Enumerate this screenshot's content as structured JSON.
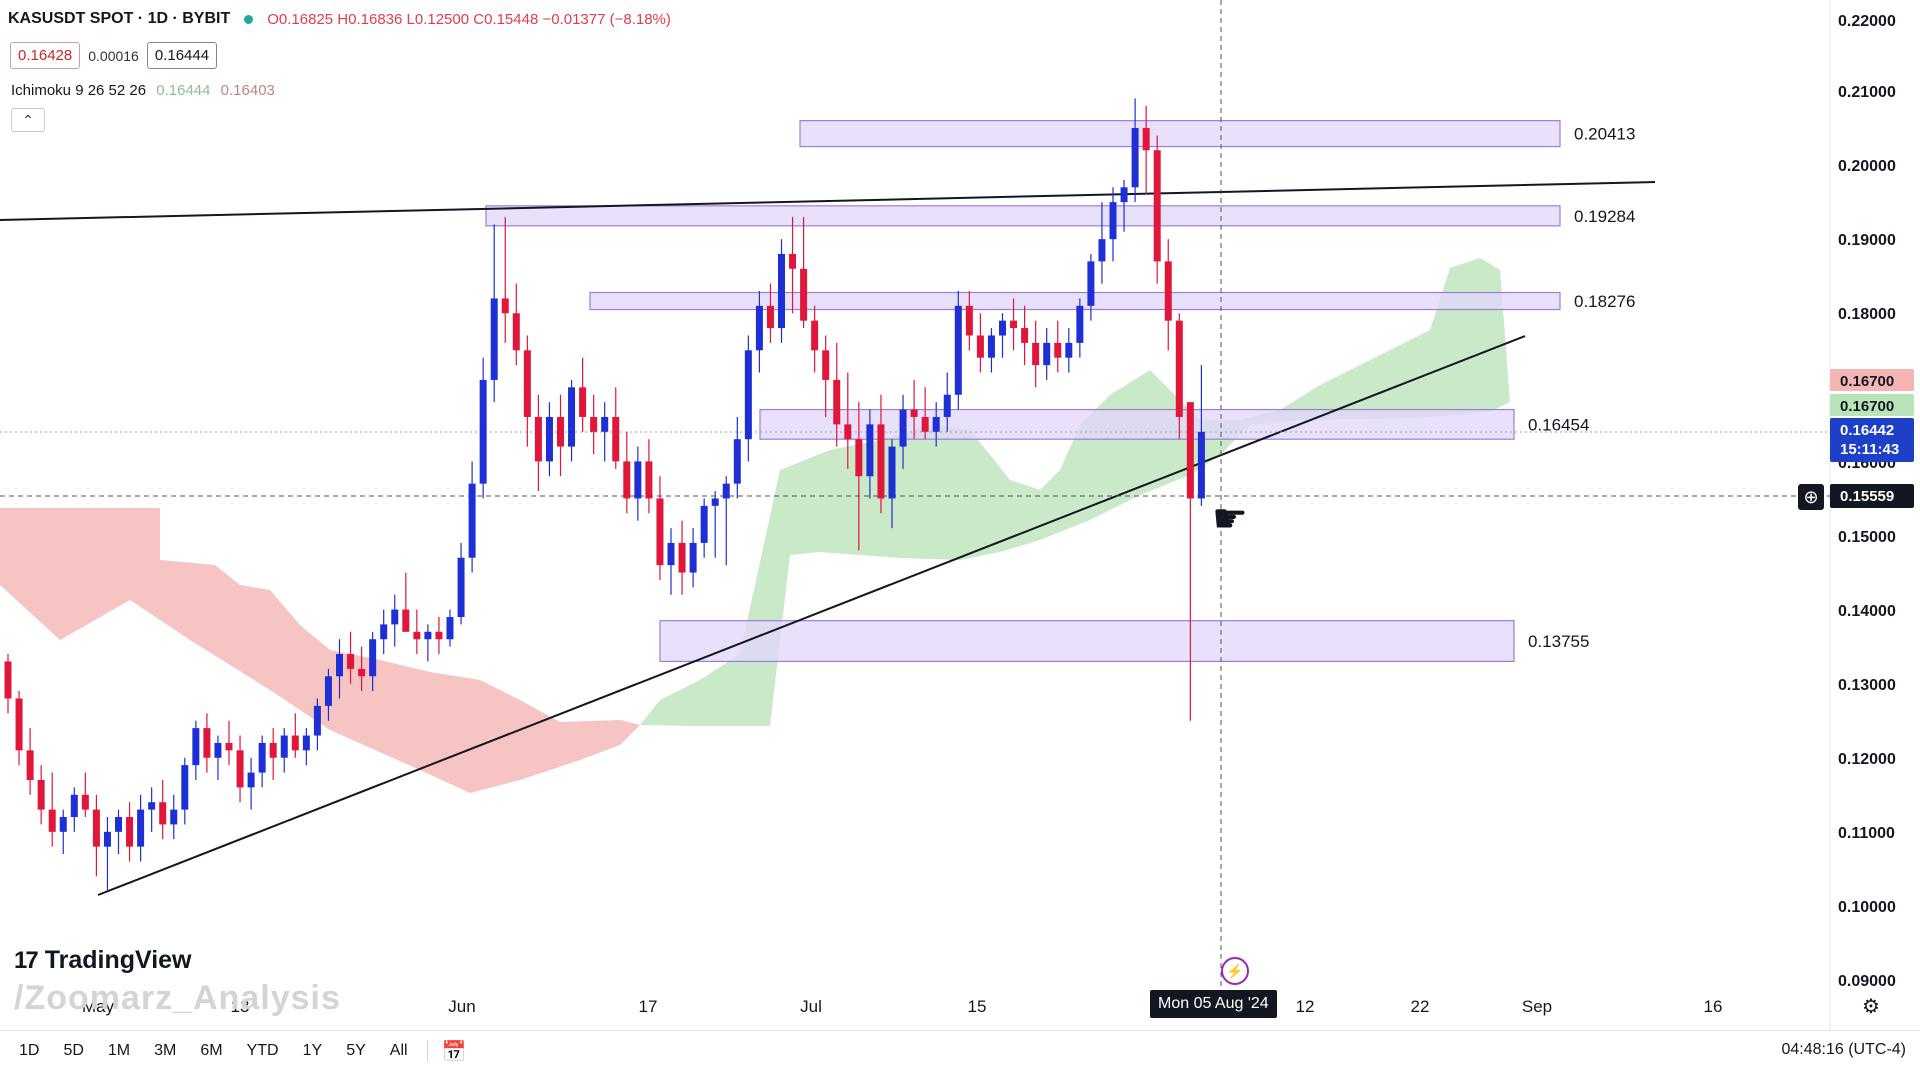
{
  "header": {
    "symbol": "KASUSDT SPOT · 1D · BYBIT",
    "ohlc": "O0.16825 H0.16836 L0.12500 C0.15448 −0.01377 (−8.18%)",
    "bid": "0.16428",
    "spread": "0.00016",
    "ask": "0.16444"
  },
  "indicator": {
    "name": "Ichimoku 9 26 52 26",
    "value1": "0.16444",
    "value2": "0.16403"
  },
  "collapse_icon": "chevron-up-icon",
  "branding": {
    "logo": "TradingView",
    "watermark": "/Zoomarz_Analysis"
  },
  "price_axis": {
    "ticks": [
      "0.22000",
      "0.21000",
      "0.20000",
      "0.19000",
      "0.18000",
      "0.16000",
      "0.15000",
      "0.14000",
      "0.13000",
      "0.12000",
      "0.11000",
      "0.10000",
      "0.09000"
    ],
    "label_red": "0.16700",
    "label_green": "0.16700",
    "label_last": "0.16442",
    "label_countdown": "15:11:43",
    "label_cursor": "0.15559"
  },
  "time_axis": {
    "ticks": [
      "May",
      "13",
      "Jun",
      "17",
      "Jul",
      "15",
      "12",
      "22",
      "Sep",
      "16"
    ],
    "crosshair_date": "Mon 05 Aug '24"
  },
  "zones": [
    {
      "label": "0.20413",
      "low": 0.2025,
      "high": 0.206
    },
    {
      "label": "0.19284",
      "low": 0.1918,
      "high": 0.1945
    },
    {
      "label": "0.18276",
      "low": 0.1805,
      "high": 0.1828
    },
    {
      "label": "0.16454",
      "low": 0.163,
      "high": 0.167
    },
    {
      "label": "0.13755",
      "low": 0.133,
      "high": 0.1385
    }
  ],
  "bottom_bar": {
    "timeframes": [
      "1D",
      "5D",
      "1M",
      "3M",
      "6M",
      "YTD",
      "1Y",
      "5Y",
      "All"
    ],
    "calendar_icon": "calendar-icon",
    "clock": "04:48:16 (UTC-4)"
  },
  "colors": {
    "up": "#1e2fd6",
    "down": "#e0163b",
    "zone_fill": "#e2d6fb",
    "zone_stroke": "#9b7fd6",
    "cloud_green": "#bfe5bf",
    "cloud_red": "#f6baba",
    "last_price": "#1e40c8"
  },
  "chart_data": {
    "type": "candlestick",
    "ylim": [
      0.09,
      0.22
    ],
    "candles": [
      [
        0.133,
        0.134,
        0.126,
        0.128
      ],
      [
        0.128,
        0.129,
        0.119,
        0.121
      ],
      [
        0.121,
        0.124,
        0.115,
        0.117
      ],
      [
        0.117,
        0.119,
        0.111,
        0.113
      ],
      [
        0.113,
        0.118,
        0.108,
        0.11
      ],
      [
        0.11,
        0.113,
        0.107,
        0.112
      ],
      [
        0.112,
        0.116,
        0.11,
        0.115
      ],
      [
        0.115,
        0.118,
        0.112,
        0.113
      ],
      [
        0.113,
        0.115,
        0.104,
        0.108
      ],
      [
        0.108,
        0.112,
        0.102,
        0.11
      ],
      [
        0.11,
        0.113,
        0.107,
        0.112
      ],
      [
        0.112,
        0.114,
        0.106,
        0.108
      ],
      [
        0.108,
        0.115,
        0.106,
        0.113
      ],
      [
        0.113,
        0.116,
        0.11,
        0.114
      ],
      [
        0.114,
        0.117,
        0.109,
        0.111
      ],
      [
        0.111,
        0.115,
        0.109,
        0.113
      ],
      [
        0.113,
        0.12,
        0.111,
        0.119
      ],
      [
        0.119,
        0.125,
        0.117,
        0.124
      ],
      [
        0.124,
        0.126,
        0.118,
        0.12
      ],
      [
        0.12,
        0.123,
        0.117,
        0.122
      ],
      [
        0.122,
        0.125,
        0.119,
        0.121
      ],
      [
        0.121,
        0.123,
        0.114,
        0.116
      ],
      [
        0.116,
        0.12,
        0.113,
        0.118
      ],
      [
        0.118,
        0.123,
        0.116,
        0.122
      ],
      [
        0.122,
        0.124,
        0.117,
        0.12
      ],
      [
        0.12,
        0.124,
        0.118,
        0.123
      ],
      [
        0.123,
        0.126,
        0.12,
        0.121
      ],
      [
        0.121,
        0.124,
        0.119,
        0.123
      ],
      [
        0.123,
        0.128,
        0.121,
        0.127
      ],
      [
        0.127,
        0.132,
        0.125,
        0.131
      ],
      [
        0.131,
        0.136,
        0.128,
        0.134
      ],
      [
        0.134,
        0.137,
        0.13,
        0.132
      ],
      [
        0.132,
        0.135,
        0.129,
        0.131
      ],
      [
        0.131,
        0.137,
        0.129,
        0.136
      ],
      [
        0.136,
        0.14,
        0.134,
        0.138
      ],
      [
        0.138,
        0.142,
        0.135,
        0.14
      ],
      [
        0.14,
        0.145,
        0.137,
        0.137
      ],
      [
        0.137,
        0.14,
        0.134,
        0.136
      ],
      [
        0.136,
        0.138,
        0.133,
        0.137
      ],
      [
        0.137,
        0.139,
        0.134,
        0.136
      ],
      [
        0.136,
        0.14,
        0.135,
        0.139
      ],
      [
        0.139,
        0.149,
        0.138,
        0.147
      ],
      [
        0.147,
        0.16,
        0.145,
        0.157
      ],
      [
        0.157,
        0.174,
        0.155,
        0.171
      ],
      [
        0.171,
        0.192,
        0.168,
        0.182
      ],
      [
        0.182,
        0.193,
        0.176,
        0.18
      ],
      [
        0.18,
        0.184,
        0.173,
        0.175
      ],
      [
        0.175,
        0.177,
        0.162,
        0.166
      ],
      [
        0.166,
        0.169,
        0.156,
        0.16
      ],
      [
        0.16,
        0.168,
        0.158,
        0.166
      ],
      [
        0.166,
        0.169,
        0.158,
        0.162
      ],
      [
        0.162,
        0.171,
        0.16,
        0.17
      ],
      [
        0.17,
        0.174,
        0.164,
        0.166
      ],
      [
        0.166,
        0.169,
        0.161,
        0.164
      ],
      [
        0.164,
        0.168,
        0.16,
        0.166
      ],
      [
        0.166,
        0.17,
        0.159,
        0.16
      ],
      [
        0.16,
        0.164,
        0.153,
        0.155
      ],
      [
        0.155,
        0.162,
        0.152,
        0.16
      ],
      [
        0.16,
        0.163,
        0.153,
        0.155
      ],
      [
        0.155,
        0.158,
        0.144,
        0.146
      ],
      [
        0.146,
        0.151,
        0.142,
        0.149
      ],
      [
        0.149,
        0.152,
        0.142,
        0.145
      ],
      [
        0.145,
        0.151,
        0.143,
        0.149
      ],
      [
        0.149,
        0.155,
        0.147,
        0.154
      ],
      [
        0.154,
        0.156,
        0.147,
        0.155
      ],
      [
        0.155,
        0.158,
        0.146,
        0.157
      ],
      [
        0.157,
        0.166,
        0.155,
        0.163
      ],
      [
        0.163,
        0.177,
        0.16,
        0.175
      ],
      [
        0.175,
        0.183,
        0.172,
        0.181
      ],
      [
        0.181,
        0.184,
        0.176,
        0.178
      ],
      [
        0.178,
        0.19,
        0.176,
        0.188
      ],
      [
        0.188,
        0.193,
        0.18,
        0.186
      ],
      [
        0.186,
        0.193,
        0.178,
        0.179
      ],
      [
        0.179,
        0.181,
        0.172,
        0.175
      ],
      [
        0.175,
        0.177,
        0.166,
        0.171
      ],
      [
        0.171,
        0.176,
        0.162,
        0.165
      ],
      [
        0.165,
        0.172,
        0.159,
        0.163
      ],
      [
        0.163,
        0.168,
        0.148,
        0.158
      ],
      [
        0.158,
        0.167,
        0.155,
        0.165
      ],
      [
        0.165,
        0.169,
        0.153,
        0.155
      ],
      [
        0.155,
        0.163,
        0.151,
        0.162
      ],
      [
        0.162,
        0.169,
        0.159,
        0.167
      ],
      [
        0.167,
        0.171,
        0.163,
        0.166
      ],
      [
        0.166,
        0.17,
        0.163,
        0.164
      ],
      [
        0.164,
        0.168,
        0.162,
        0.166
      ],
      [
        0.166,
        0.172,
        0.164,
        0.169
      ],
      [
        0.169,
        0.183,
        0.167,
        0.181
      ],
      [
        0.181,
        0.183,
        0.175,
        0.177
      ],
      [
        0.177,
        0.18,
        0.172,
        0.174
      ],
      [
        0.174,
        0.178,
        0.172,
        0.177
      ],
      [
        0.177,
        0.18,
        0.174,
        0.179
      ],
      [
        0.179,
        0.182,
        0.175,
        0.178
      ],
      [
        0.178,
        0.181,
        0.173,
        0.176
      ],
      [
        0.176,
        0.179,
        0.17,
        0.173
      ],
      [
        0.173,
        0.178,
        0.171,
        0.176
      ],
      [
        0.176,
        0.179,
        0.172,
        0.174
      ],
      [
        0.174,
        0.178,
        0.172,
        0.176
      ],
      [
        0.176,
        0.182,
        0.174,
        0.181
      ],
      [
        0.181,
        0.188,
        0.179,
        0.187
      ],
      [
        0.187,
        0.195,
        0.184,
        0.19
      ],
      [
        0.19,
        0.197,
        0.187,
        0.195
      ],
      [
        0.195,
        0.198,
        0.191,
        0.197
      ],
      [
        0.197,
        0.209,
        0.195,
        0.205
      ],
      [
        0.205,
        0.208,
        0.196,
        0.202
      ],
      [
        0.202,
        0.204,
        0.184,
        0.187
      ],
      [
        0.187,
        0.19,
        0.175,
        0.179
      ],
      [
        0.179,
        0.18,
        0.163,
        0.166
      ],
      [
        0.168,
        0.168,
        0.125,
        0.155
      ],
      [
        0.155,
        0.173,
        0.154,
        0.164
      ]
    ]
  }
}
